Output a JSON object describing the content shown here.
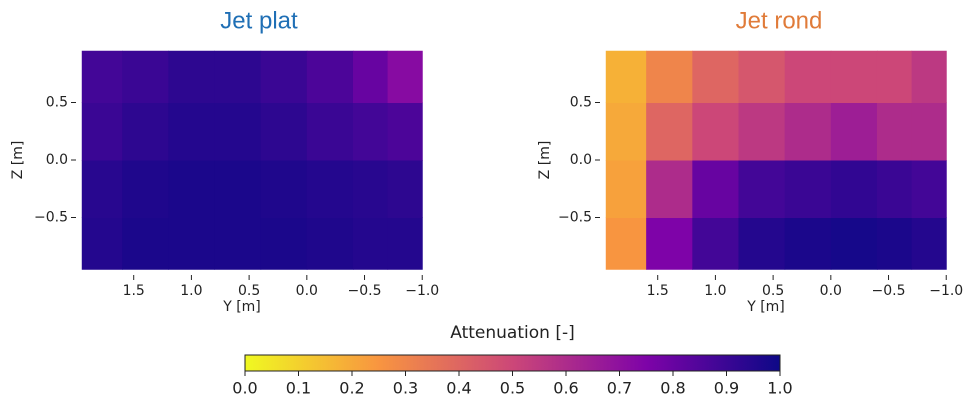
{
  "chart_data": [
    {
      "type": "heatmap",
      "title": "Jet plat",
      "title_color": "#1f6fb5",
      "xlabel": "Y [m]",
      "ylabel": "Z [m]",
      "xlim": [
        2.0,
        -1.05
      ],
      "ylim": [
        -1.0,
        1.0
      ],
      "xticks": [
        1.5,
        {
          "value": 1.0,
          "label": "1.0"
        },
        0.5,
        {
          "value": 0.0,
          "label": "0.0"
        },
        {
          "value": -0.5,
          "label": "−0.5"
        },
        {
          "value": -1.0,
          "label": "−1.0"
        }
      ],
      "yticks": [
        {
          "value": -0.5,
          "label": "−0.5"
        },
        {
          "value": 0.0,
          "label": "0.0"
        },
        0.5
      ],
      "x_edges": [
        1.95,
        1.6,
        1.2,
        0.8,
        0.4,
        0.0,
        -0.4,
        -0.7,
        -1.0
      ],
      "y_edges": [
        -0.95,
        -0.5,
        0.0,
        0.5,
        0.95
      ],
      "z": [
        [
          0.95,
          0.97,
          0.97,
          0.97,
          0.97,
          0.96,
          0.95,
          0.95
        ],
        [
          0.94,
          0.96,
          0.97,
          0.97,
          0.96,
          0.95,
          0.94,
          0.93
        ],
        [
          0.9,
          0.93,
          0.95,
          0.95,
          0.93,
          0.9,
          0.88,
          0.86
        ],
        [
          0.88,
          0.9,
          0.93,
          0.93,
          0.9,
          0.86,
          0.8,
          0.72
        ]
      ]
    },
    {
      "type": "heatmap",
      "title": "Jet rond",
      "title_color": "#e07b39",
      "xlabel": "Y [m]",
      "ylabel": "Z [m]",
      "xlim": [
        2.0,
        -1.05
      ],
      "ylim": [
        -1.0,
        1.0
      ],
      "xticks": [
        1.5,
        {
          "value": 1.0,
          "label": "1.0"
        },
        0.5,
        {
          "value": 0.0,
          "label": "0.0"
        },
        {
          "value": -0.5,
          "label": "−0.5"
        },
        {
          "value": -1.0,
          "label": "−1.0"
        }
      ],
      "yticks": [
        {
          "value": -0.5,
          "label": "−0.5"
        },
        {
          "value": 0.0,
          "label": "0.0"
        },
        0.5
      ],
      "x_edges": [
        1.95,
        1.6,
        1.2,
        0.8,
        0.4,
        0.0,
        -0.4,
        -0.7,
        -1.0
      ],
      "y_edges": [
        -0.95,
        -0.5,
        0.0,
        0.5,
        0.95
      ],
      "z": [
        [
          0.25,
          0.75,
          0.88,
          0.95,
          0.97,
          0.98,
          0.97,
          0.95
        ],
        [
          0.22,
          0.6,
          0.8,
          0.88,
          0.9,
          0.92,
          0.9,
          0.88
        ],
        [
          0.2,
          0.4,
          0.5,
          0.55,
          0.6,
          0.65,
          0.6,
          0.6
        ],
        [
          0.18,
          0.3,
          0.4,
          0.45,
          0.5,
          0.5,
          0.5,
          0.55
        ]
      ]
    },
    {
      "type": "colorbar",
      "label": "Attenuation [-]",
      "xlim": [
        0,
        1
      ],
      "xticks": [
        {
          "value": 0.0,
          "label": "0.0"
        },
        0.1,
        0.2,
        0.3,
        0.4,
        0.5,
        0.6,
        0.7,
        0.8,
        0.9,
        {
          "value": 1.0,
          "label": "1.0"
        }
      ],
      "colorscale": [
        "#f0f921",
        "#f89540",
        "#cc4778",
        "#7e03a8",
        "#0d0887"
      ]
    }
  ]
}
